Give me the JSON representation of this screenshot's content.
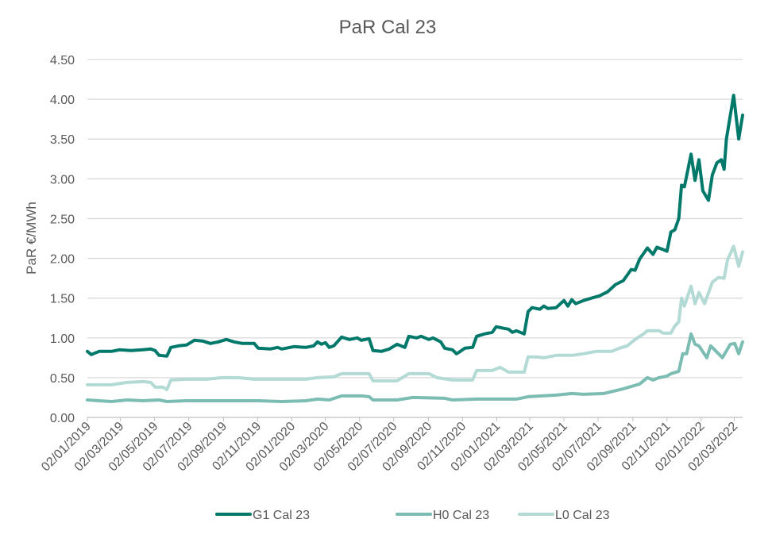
{
  "chart_data": {
    "type": "line",
    "title": "PaR Cal 23",
    "xlabel": "",
    "ylabel": "PaR €/MWh",
    "ylim": [
      0,
      4.5
    ],
    "yticks": [
      "0.00",
      "0.50",
      "1.00",
      "1.50",
      "2.00",
      "2.50",
      "3.00",
      "3.50",
      "4.00",
      "4.50"
    ],
    "x_unit": "days since 02/01/2019",
    "xlim": [
      0,
      1170
    ],
    "xticks": [
      {
        "label": "02/01/2019",
        "day": 0
      },
      {
        "label": "02/03/2019",
        "day": 59
      },
      {
        "label": "02/05/2019",
        "day": 120
      },
      {
        "label": "02/07/2019",
        "day": 181
      },
      {
        "label": "02/09/2019",
        "day": 243
      },
      {
        "label": "02/11/2019",
        "day": 304
      },
      {
        "label": "02/01/2020",
        "day": 365
      },
      {
        "label": "02/03/2020",
        "day": 425
      },
      {
        "label": "02/05/2020",
        "day": 486
      },
      {
        "label": "02/07/2020",
        "day": 547
      },
      {
        "label": "02/09/2020",
        "day": 609
      },
      {
        "label": "02/11/2020",
        "day": 670
      },
      {
        "label": "02/01/2021",
        "day": 731
      },
      {
        "label": "02/03/2021",
        "day": 790
      },
      {
        "label": "02/05/2021",
        "day": 851
      },
      {
        "label": "02/07/2021",
        "day": 912
      },
      {
        "label": "02/09/2021",
        "day": 974
      },
      {
        "label": "02/11/2021",
        "day": 1035
      },
      {
        "label": "02/01/2022",
        "day": 1096
      },
      {
        "label": "02/03/2022",
        "day": 1155
      }
    ],
    "grid": true,
    "legend": "bottom",
    "series": [
      {
        "name": "G1 Cal 23",
        "color": "#00786a",
        "points": [
          [
            0,
            0.83
          ],
          [
            7,
            0.79
          ],
          [
            21,
            0.83
          ],
          [
            43,
            0.83
          ],
          [
            57,
            0.85
          ],
          [
            78,
            0.84
          ],
          [
            99,
            0.85
          ],
          [
            113,
            0.86
          ],
          [
            121,
            0.84
          ],
          [
            128,
            0.78
          ],
          [
            142,
            0.77
          ],
          [
            149,
            0.88
          ],
          [
            163,
            0.9
          ],
          [
            177,
            0.91
          ],
          [
            191,
            0.97
          ],
          [
            206,
            0.96
          ],
          [
            220,
            0.93
          ],
          [
            234,
            0.95
          ],
          [
            248,
            0.98
          ],
          [
            262,
            0.95
          ],
          [
            277,
            0.93
          ],
          [
            298,
            0.93
          ],
          [
            305,
            0.87
          ],
          [
            326,
            0.86
          ],
          [
            340,
            0.88
          ],
          [
            347,
            0.86
          ],
          [
            369,
            0.89
          ],
          [
            390,
            0.88
          ],
          [
            404,
            0.9
          ],
          [
            411,
            0.95
          ],
          [
            418,
            0.92
          ],
          [
            425,
            0.94
          ],
          [
            432,
            0.88
          ],
          [
            440,
            0.9
          ],
          [
            454,
            1.01
          ],
          [
            468,
            0.98
          ],
          [
            482,
            1.0
          ],
          [
            489,
            0.97
          ],
          [
            503,
            0.99
          ],
          [
            510,
            0.84
          ],
          [
            525,
            0.83
          ],
          [
            539,
            0.86
          ],
          [
            553,
            0.92
          ],
          [
            567,
            0.88
          ],
          [
            574,
            1.02
          ],
          [
            588,
            1.0
          ],
          [
            596,
            1.02
          ],
          [
            610,
            0.98
          ],
          [
            617,
            1.0
          ],
          [
            631,
            0.95
          ],
          [
            638,
            0.87
          ],
          [
            652,
            0.85
          ],
          [
            659,
            0.8
          ],
          [
            666,
            0.83
          ],
          [
            674,
            0.87
          ],
          [
            688,
            0.88
          ],
          [
            695,
            1.02
          ],
          [
            709,
            1.05
          ],
          [
            723,
            1.07
          ],
          [
            730,
            1.14
          ],
          [
            744,
            1.12
          ],
          [
            752,
            1.11
          ],
          [
            759,
            1.07
          ],
          [
            766,
            1.09
          ],
          [
            780,
            1.05
          ],
          [
            787,
            1.33
          ],
          [
            794,
            1.38
          ],
          [
            808,
            1.36
          ],
          [
            815,
            1.4
          ],
          [
            822,
            1.37
          ],
          [
            837,
            1.38
          ],
          [
            851,
            1.47
          ],
          [
            858,
            1.4
          ],
          [
            865,
            1.48
          ],
          [
            872,
            1.43
          ],
          [
            886,
            1.47
          ],
          [
            900,
            1.5
          ],
          [
            915,
            1.53
          ],
          [
            929,
            1.58
          ],
          [
            943,
            1.67
          ],
          [
            957,
            1.72
          ],
          [
            971,
            1.86
          ],
          [
            978,
            1.85
          ],
          [
            986,
            1.99
          ],
          [
            1000,
            2.13
          ],
          [
            1010,
            2.05
          ],
          [
            1017,
            2.14
          ],
          [
            1028,
            2.11
          ],
          [
            1035,
            2.09
          ],
          [
            1042,
            2.33
          ],
          [
            1049,
            2.36
          ],
          [
            1056,
            2.5
          ],
          [
            1061,
            2.92
          ],
          [
            1066,
            2.9
          ],
          [
            1078,
            3.31
          ],
          [
            1085,
            2.98
          ],
          [
            1092,
            3.24
          ],
          [
            1099,
            2.85
          ],
          [
            1109,
            2.73
          ],
          [
            1116,
            3.05
          ],
          [
            1124,
            3.2
          ],
          [
            1132,
            3.24
          ],
          [
            1137,
            3.12
          ],
          [
            1141,
            3.5
          ],
          [
            1154,
            4.05
          ],
          [
            1163,
            3.5
          ],
          [
            1170,
            3.8
          ]
        ]
      },
      {
        "name": "H0 Cal 23",
        "color": "#7cbdb3",
        "points": [
          [
            0,
            0.22
          ],
          [
            21,
            0.21
          ],
          [
            43,
            0.2
          ],
          [
            71,
            0.22
          ],
          [
            99,
            0.21
          ],
          [
            128,
            0.22
          ],
          [
            142,
            0.2
          ],
          [
            177,
            0.21
          ],
          [
            220,
            0.21
          ],
          [
            262,
            0.21
          ],
          [
            305,
            0.21
          ],
          [
            347,
            0.2
          ],
          [
            390,
            0.21
          ],
          [
            411,
            0.23
          ],
          [
            432,
            0.22
          ],
          [
            454,
            0.27
          ],
          [
            489,
            0.27
          ],
          [
            503,
            0.26
          ],
          [
            510,
            0.22
          ],
          [
            553,
            0.22
          ],
          [
            581,
            0.25
          ],
          [
            638,
            0.24
          ],
          [
            652,
            0.22
          ],
          [
            695,
            0.23
          ],
          [
            766,
            0.23
          ],
          [
            787,
            0.26
          ],
          [
            837,
            0.28
          ],
          [
            865,
            0.3
          ],
          [
            886,
            0.29
          ],
          [
            922,
            0.3
          ],
          [
            957,
            0.36
          ],
          [
            986,
            0.42
          ],
          [
            1000,
            0.5
          ],
          [
            1010,
            0.47
          ],
          [
            1021,
            0.5
          ],
          [
            1035,
            0.52
          ],
          [
            1042,
            0.55
          ],
          [
            1056,
            0.58
          ],
          [
            1063,
            0.8
          ],
          [
            1070,
            0.8
          ],
          [
            1078,
            1.05
          ],
          [
            1085,
            0.92
          ],
          [
            1092,
            0.9
          ],
          [
            1106,
            0.75
          ],
          [
            1113,
            0.9
          ],
          [
            1127,
            0.8
          ],
          [
            1134,
            0.75
          ],
          [
            1148,
            0.92
          ],
          [
            1156,
            0.93
          ],
          [
            1163,
            0.8
          ],
          [
            1170,
            0.95
          ]
        ]
      },
      {
        "name": "L0 Cal 23",
        "color": "#b3dad4",
        "points": [
          [
            0,
            0.41
          ],
          [
            43,
            0.41
          ],
          [
            71,
            0.44
          ],
          [
            99,
            0.45
          ],
          [
            113,
            0.44
          ],
          [
            121,
            0.38
          ],
          [
            135,
            0.38
          ],
          [
            142,
            0.35
          ],
          [
            149,
            0.47
          ],
          [
            177,
            0.48
          ],
          [
            213,
            0.48
          ],
          [
            241,
            0.5
          ],
          [
            269,
            0.5
          ],
          [
            298,
            0.48
          ],
          [
            340,
            0.48
          ],
          [
            390,
            0.48
          ],
          [
            411,
            0.5
          ],
          [
            440,
            0.51
          ],
          [
            454,
            0.55
          ],
          [
            489,
            0.55
          ],
          [
            503,
            0.55
          ],
          [
            510,
            0.46
          ],
          [
            553,
            0.46
          ],
          [
            574,
            0.55
          ],
          [
            610,
            0.55
          ],
          [
            624,
            0.5
          ],
          [
            652,
            0.47
          ],
          [
            688,
            0.47
          ],
          [
            695,
            0.59
          ],
          [
            723,
            0.59
          ],
          [
            737,
            0.63
          ],
          [
            752,
            0.57
          ],
          [
            780,
            0.57
          ],
          [
            787,
            0.76
          ],
          [
            801,
            0.76
          ],
          [
            815,
            0.75
          ],
          [
            837,
            0.78
          ],
          [
            865,
            0.78
          ],
          [
            886,
            0.8
          ],
          [
            908,
            0.83
          ],
          [
            936,
            0.83
          ],
          [
            950,
            0.87
          ],
          [
            964,
            0.9
          ],
          [
            978,
            0.98
          ],
          [
            993,
            1.05
          ],
          [
            1000,
            1.09
          ],
          [
            1021,
            1.09
          ],
          [
            1028,
            1.06
          ],
          [
            1042,
            1.06
          ],
          [
            1049,
            1.15
          ],
          [
            1056,
            1.2
          ],
          [
            1061,
            1.5
          ],
          [
            1066,
            1.4
          ],
          [
            1078,
            1.65
          ],
          [
            1085,
            1.43
          ],
          [
            1092,
            1.57
          ],
          [
            1102,
            1.43
          ],
          [
            1116,
            1.7
          ],
          [
            1127,
            1.76
          ],
          [
            1137,
            1.75
          ],
          [
            1143,
            1.98
          ],
          [
            1154,
            2.15
          ],
          [
            1163,
            1.9
          ],
          [
            1170,
            2.08
          ]
        ]
      }
    ]
  }
}
